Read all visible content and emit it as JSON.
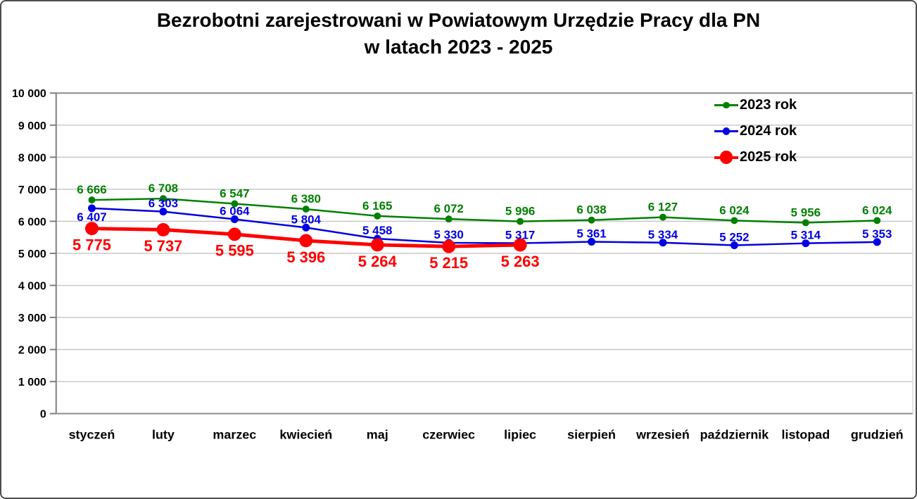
{
  "chart_data": {
    "type": "line",
    "title": "Bezrobotni zarejestrowani w Powiatowym Urzędzie Pracy dla PN",
    "subtitle": "w latach 2023 - 2025",
    "categories": [
      "styczeń",
      "luty",
      "marzec",
      "kwiecień",
      "maj",
      "czerwiec",
      "lipiec",
      "sierpień",
      "wrzesień",
      "październik",
      "listopad",
      "grudzień"
    ],
    "ylim": [
      0,
      10000
    ],
    "y_tick_step": 1000,
    "y_tick_labels": [
      "0",
      "1 000",
      "2 000",
      "3 000",
      "4 000",
      "5 000",
      "6 000",
      "7 000",
      "8 000",
      "9 000",
      "10 000"
    ],
    "grid": true,
    "legend_position": "top-right",
    "series": [
      {
        "name": "2023 rok",
        "color": "#008000",
        "line_width": 2.5,
        "marker_radius": 5,
        "label_size": 17,
        "values": [
          6666,
          6708,
          6547,
          6380,
          6165,
          6072,
          5996,
          6038,
          6127,
          6024,
          5956,
          6024
        ]
      },
      {
        "name": "2024 rok",
        "color": "#0000e0",
        "line_width": 2.5,
        "marker_radius": 5.5,
        "label_size": 17,
        "values": [
          6407,
          6303,
          6064,
          5804,
          5458,
          5330,
          5317,
          5361,
          5334,
          5252,
          5314,
          5353
        ]
      },
      {
        "name": "2025 rok",
        "color": "#fe0000",
        "line_width": 5,
        "marker_radius": 9.5,
        "label_size": 22,
        "values": [
          5775,
          5737,
          5595,
          5396,
          5264,
          5215,
          5263
        ]
      }
    ]
  }
}
